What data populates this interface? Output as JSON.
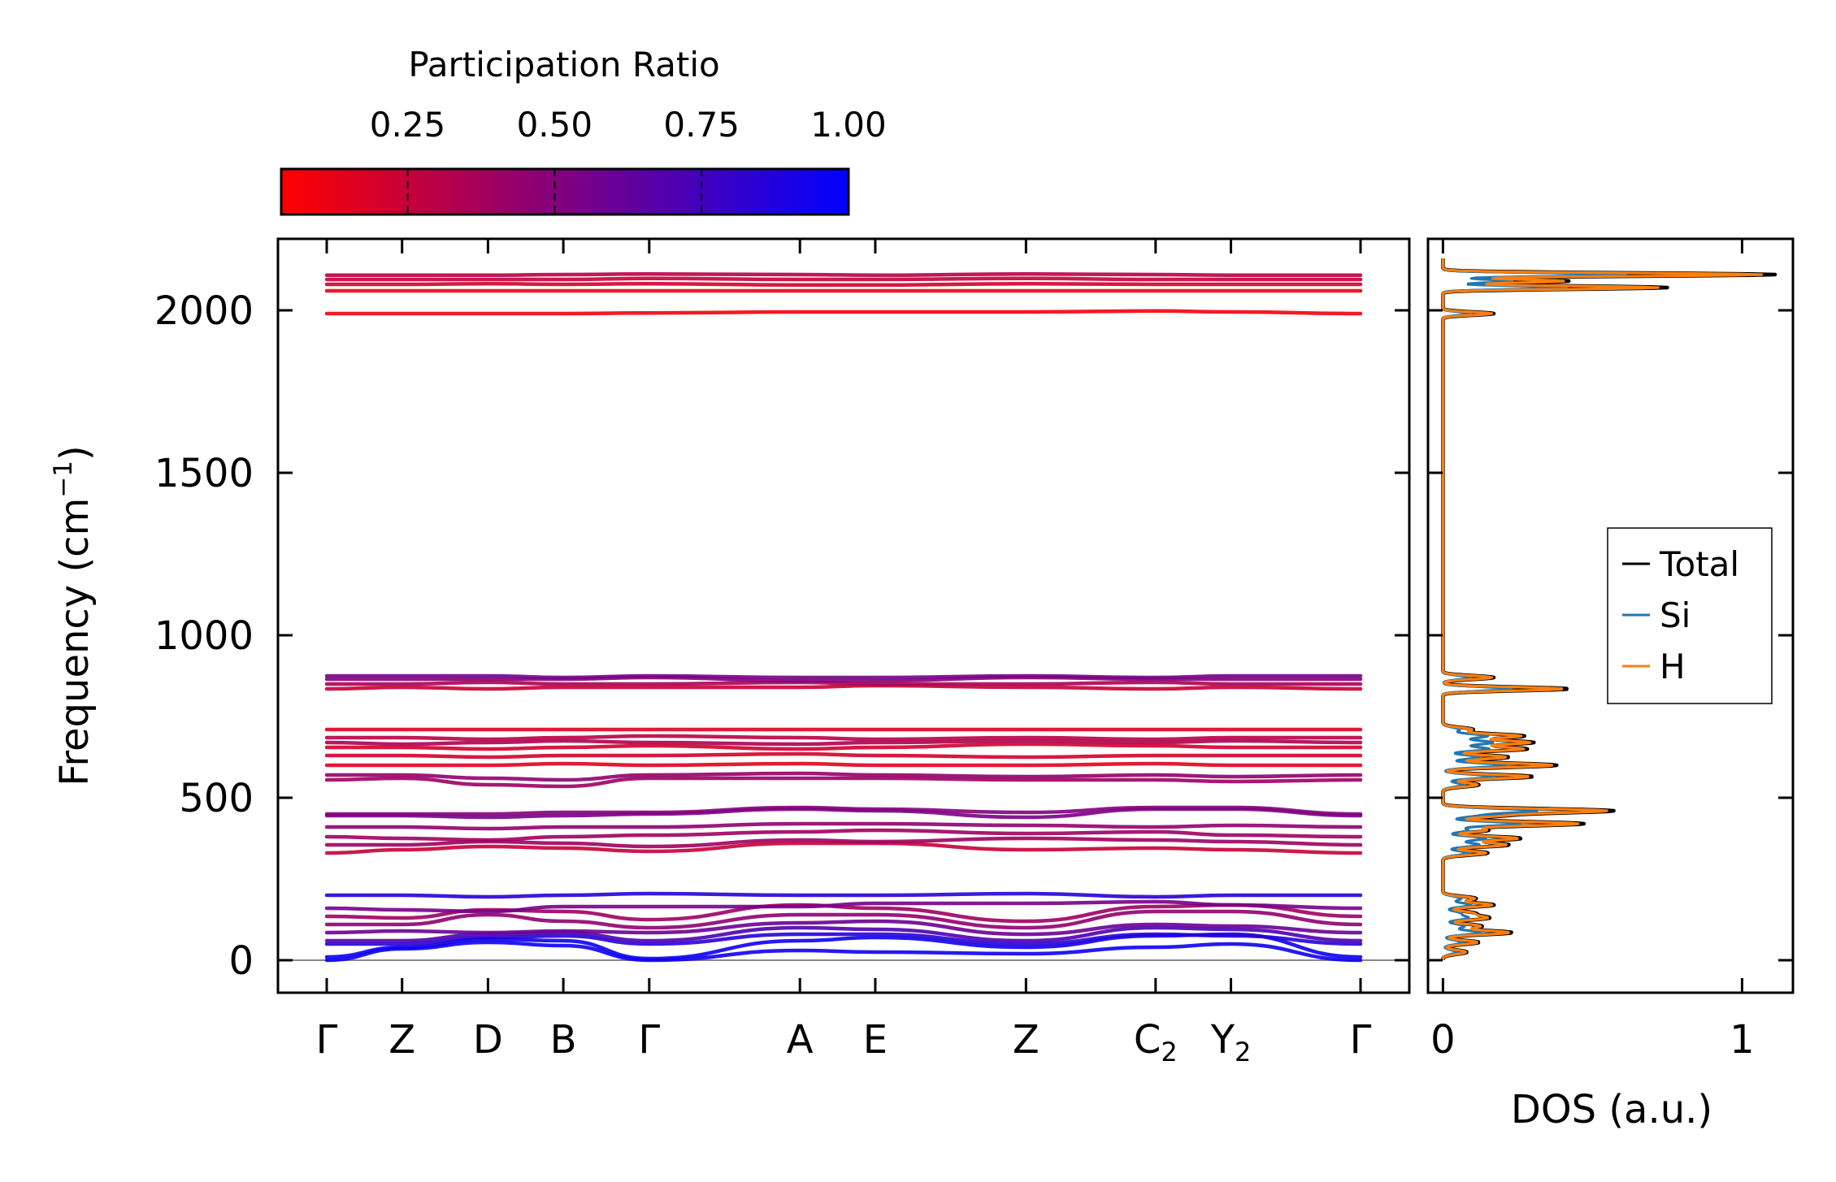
{
  "chart_data": [
    {
      "type": "line",
      "subtype": "phonon-band-structure",
      "ylabel": "Frequency (cm",
      "ylabel_sup": "−1",
      "ylabel_close": ")",
      "ylim": [
        -100,
        2220
      ],
      "yticks": [
        0,
        500,
        1000,
        1500,
        2000
      ],
      "path": [
        {
          "label": "Γ",
          "sub": "",
          "x": 0.0
        },
        {
          "label": "Z",
          "sub": "",
          "x": 0.5
        },
        {
          "label": "D",
          "sub": "",
          "x": 1.07
        },
        {
          "label": "B",
          "sub": "",
          "x": 1.57
        },
        {
          "label": "Γ",
          "sub": "",
          "x": 2.14
        },
        {
          "label": "A",
          "sub": "",
          "x": 3.14
        },
        {
          "label": "E",
          "sub": "",
          "x": 3.64
        },
        {
          "label": "Z",
          "sub": "",
          "x": 4.64
        },
        {
          "label": "C",
          "sub": "2",
          "x": 5.5
        },
        {
          "label": "Y",
          "sub": "2",
          "x": 6.0
        },
        {
          "label": "Γ",
          "sub": "",
          "x": 6.86
        }
      ],
      "colorbar": {
        "title": "Participation Ratio",
        "ticks": [
          0.25,
          0.5,
          0.75,
          1.0
        ],
        "tick_labels": [
          "0.25",
          "0.50",
          "0.75",
          "1.00"
        ],
        "range": [
          0.035,
          1.0
        ],
        "color_low": "#ff0000",
        "color_high": "#0000ff"
      },
      "bands": [
        {
          "freq": [
            0,
            35,
            55,
            45,
            0,
            30,
            25,
            20,
            40,
            50,
            0
          ],
          "pr": 0.95
        },
        {
          "freq": [
            10,
            40,
            65,
            60,
            5,
            60,
            70,
            40,
            75,
            80,
            10
          ],
          "pr": 0.95
        },
        {
          "freq": [
            50,
            50,
            70,
            75,
            50,
            80,
            80,
            50,
            80,
            75,
            50
          ],
          "pr": 0.85
        },
        {
          "freq": [
            60,
            60,
            80,
            85,
            60,
            100,
            95,
            60,
            100,
            95,
            60
          ],
          "pr": 0.7
        },
        {
          "freq": [
            85,
            90,
            85,
            90,
            85,
            115,
            120,
            80,
            110,
            105,
            85
          ],
          "pr": 0.6
        },
        {
          "freq": [
            110,
            110,
            140,
            120,
            100,
            140,
            140,
            100,
            150,
            150,
            110
          ],
          "pr": 0.45
        },
        {
          "freq": [
            135,
            130,
            155,
            150,
            125,
            170,
            160,
            120,
            165,
            170,
            135
          ],
          "pr": 0.4
        },
        {
          "freq": [
            160,
            155,
            150,
            165,
            165,
            165,
            175,
            175,
            180,
            170,
            160
          ],
          "pr": 0.55
        },
        {
          "freq": [
            200,
            200,
            195,
            200,
            205,
            200,
            200,
            205,
            195,
            200,
            200
          ],
          "pr": 0.85
        },
        {
          "freq": [
            330,
            340,
            350,
            345,
            335,
            360,
            360,
            340,
            345,
            340,
            330
          ],
          "pr": 0.25
        },
        {
          "freq": [
            355,
            355,
            365,
            360,
            350,
            370,
            365,
            375,
            370,
            365,
            355
          ],
          "pr": 0.4
        },
        {
          "freq": [
            380,
            375,
            370,
            380,
            385,
            395,
            400,
            390,
            395,
            385,
            380
          ],
          "pr": 0.4
        },
        {
          "freq": [
            410,
            410,
            405,
            410,
            410,
            420,
            420,
            415,
            410,
            415,
            410
          ],
          "pr": 0.45
        },
        {
          "freq": [
            445,
            445,
            440,
            445,
            450,
            465,
            460,
            440,
            465,
            465,
            445
          ],
          "pr": 0.55
        },
        {
          "freq": [
            450,
            450,
            450,
            455,
            455,
            470,
            465,
            455,
            470,
            470,
            450
          ],
          "pr": 0.5
        },
        {
          "freq": [
            555,
            560,
            540,
            535,
            560,
            560,
            560,
            555,
            555,
            550,
            555
          ],
          "pr": 0.4
        },
        {
          "freq": [
            570,
            570,
            560,
            555,
            570,
            575,
            570,
            565,
            570,
            565,
            570
          ],
          "pr": 0.45
        },
        {
          "freq": [
            600,
            600,
            600,
            605,
            600,
            605,
            600,
            600,
            605,
            600,
            600
          ],
          "pr": 0.15
        },
        {
          "freq": [
            630,
            630,
            625,
            630,
            630,
            635,
            630,
            625,
            630,
            630,
            630
          ],
          "pr": 0.2
        },
        {
          "freq": [
            655,
            655,
            650,
            655,
            660,
            650,
            655,
            665,
            660,
            655,
            655
          ],
          "pr": 0.2
        },
        {
          "freq": [
            670,
            665,
            670,
            675,
            670,
            665,
            670,
            675,
            670,
            675,
            670
          ],
          "pr": 0.35
        },
        {
          "freq": [
            685,
            685,
            680,
            685,
            690,
            685,
            680,
            685,
            680,
            685,
            685
          ],
          "pr": 0.3
        },
        {
          "freq": [
            710,
            710,
            710,
            710,
            710,
            710,
            710,
            710,
            710,
            710,
            710
          ],
          "pr": 0.15
        },
        {
          "freq": [
            835,
            840,
            835,
            840,
            840,
            840,
            845,
            840,
            835,
            840,
            835
          ],
          "pr": 0.25
        },
        {
          "freq": [
            850,
            850,
            855,
            850,
            850,
            855,
            850,
            850,
            855,
            850,
            850
          ],
          "pr": 0.35
        },
        {
          "freq": [
            865,
            865,
            865,
            865,
            870,
            860,
            860,
            870,
            865,
            865,
            865
          ],
          "pr": 0.5
        },
        {
          "freq": [
            875,
            875,
            875,
            870,
            875,
            870,
            870,
            875,
            870,
            875,
            875
          ],
          "pr": 0.55
        },
        {
          "freq": [
            1990,
            1990,
            1990,
            1990,
            1992,
            1995,
            1995,
            1995,
            1998,
            1995,
            1990
          ],
          "pr": 0.08
        },
        {
          "freq": [
            2060,
            2060,
            2060,
            2060,
            2060,
            2060,
            2060,
            2060,
            2060,
            2060,
            2060
          ],
          "pr": 0.12
        },
        {
          "freq": [
            2080,
            2080,
            2082,
            2080,
            2082,
            2078,
            2078,
            2082,
            2080,
            2080,
            2080
          ],
          "pr": 0.2
        },
        {
          "freq": [
            2095,
            2095,
            2095,
            2095,
            2098,
            2095,
            2095,
            2098,
            2095,
            2095,
            2095
          ],
          "pr": 0.25
        },
        {
          "freq": [
            2108,
            2108,
            2108,
            2110,
            2112,
            2110,
            2108,
            2112,
            2110,
            2108,
            2108
          ],
          "pr": 0.3
        }
      ]
    },
    {
      "type": "line",
      "subtype": "density-of-states",
      "xlabel": "DOS (a.u.)",
      "xlim": [
        -0.05,
        1.17
      ],
      "xticks": [
        0,
        1
      ],
      "xtick_labels": [
        "0",
        "1"
      ],
      "ylim": [
        -100,
        2220
      ],
      "legend_position": "center-right",
      "peaks_total": [
        [
          25,
          0.08
        ],
        [
          55,
          0.12
        ],
        [
          85,
          0.23
        ],
        [
          105,
          0.13
        ],
        [
          130,
          0.15
        ],
        [
          145,
          0.1
        ],
        [
          170,
          0.17
        ],
        [
          190,
          0.11
        ],
        [
          330,
          0.15
        ],
        [
          355,
          0.22
        ],
        [
          375,
          0.26
        ],
        [
          400,
          0.15
        ],
        [
          420,
          0.47
        ],
        [
          445,
          0.18
        ],
        [
          460,
          0.56
        ],
        [
          540,
          0.12
        ],
        [
          565,
          0.3
        ],
        [
          600,
          0.38
        ],
        [
          625,
          0.22
        ],
        [
          650,
          0.28
        ],
        [
          670,
          0.3
        ],
        [
          690,
          0.27
        ],
        [
          710,
          0.1
        ],
        [
          835,
          0.42
        ],
        [
          870,
          0.17
        ],
        [
          1990,
          0.17
        ],
        [
          2070,
          0.75
        ],
        [
          2090,
          0.42
        ],
        [
          2110,
          1.11
        ]
      ],
      "series": [
        {
          "name": "Total",
          "color": "#000000",
          "scale": 1.0
        },
        {
          "name": "Si",
          "color": "#1f77b4",
          "scale": 0.55
        },
        {
          "name": "H",
          "color": "#ff7f0e",
          "scale": 0.96
        }
      ]
    }
  ]
}
